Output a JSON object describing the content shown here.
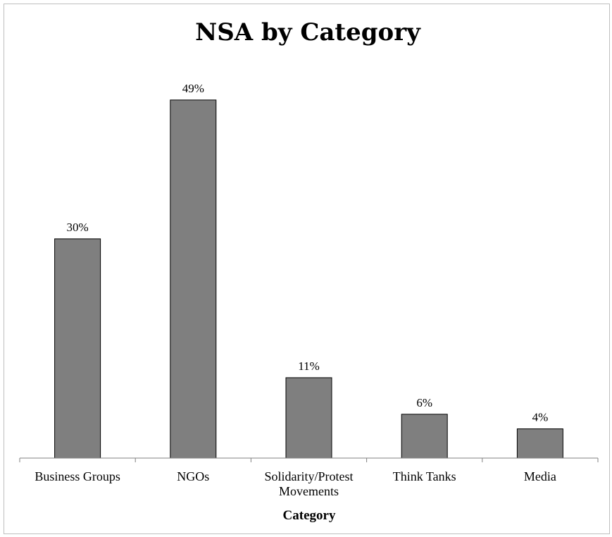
{
  "chart_data": {
    "type": "bar",
    "title": "NSA by Category",
    "xlabel": "Category",
    "ylabel": "",
    "categories": [
      [
        "Business Groups"
      ],
      [
        "NGOs"
      ],
      [
        "Solidarity/Protest",
        "Movements"
      ],
      [
        "Think Tanks"
      ],
      [
        "Media"
      ]
    ],
    "values": [
      30,
      49,
      11,
      6,
      4
    ],
    "data_labels": [
      "30%",
      "49%",
      "11%",
      "6%",
      "4%"
    ],
    "ylim": [
      0,
      50
    ],
    "grid": false,
    "legend": "none",
    "colors": {
      "bar_fill": "#7f7f7f",
      "bar_stroke": "#000000",
      "axis": "#808080"
    }
  }
}
